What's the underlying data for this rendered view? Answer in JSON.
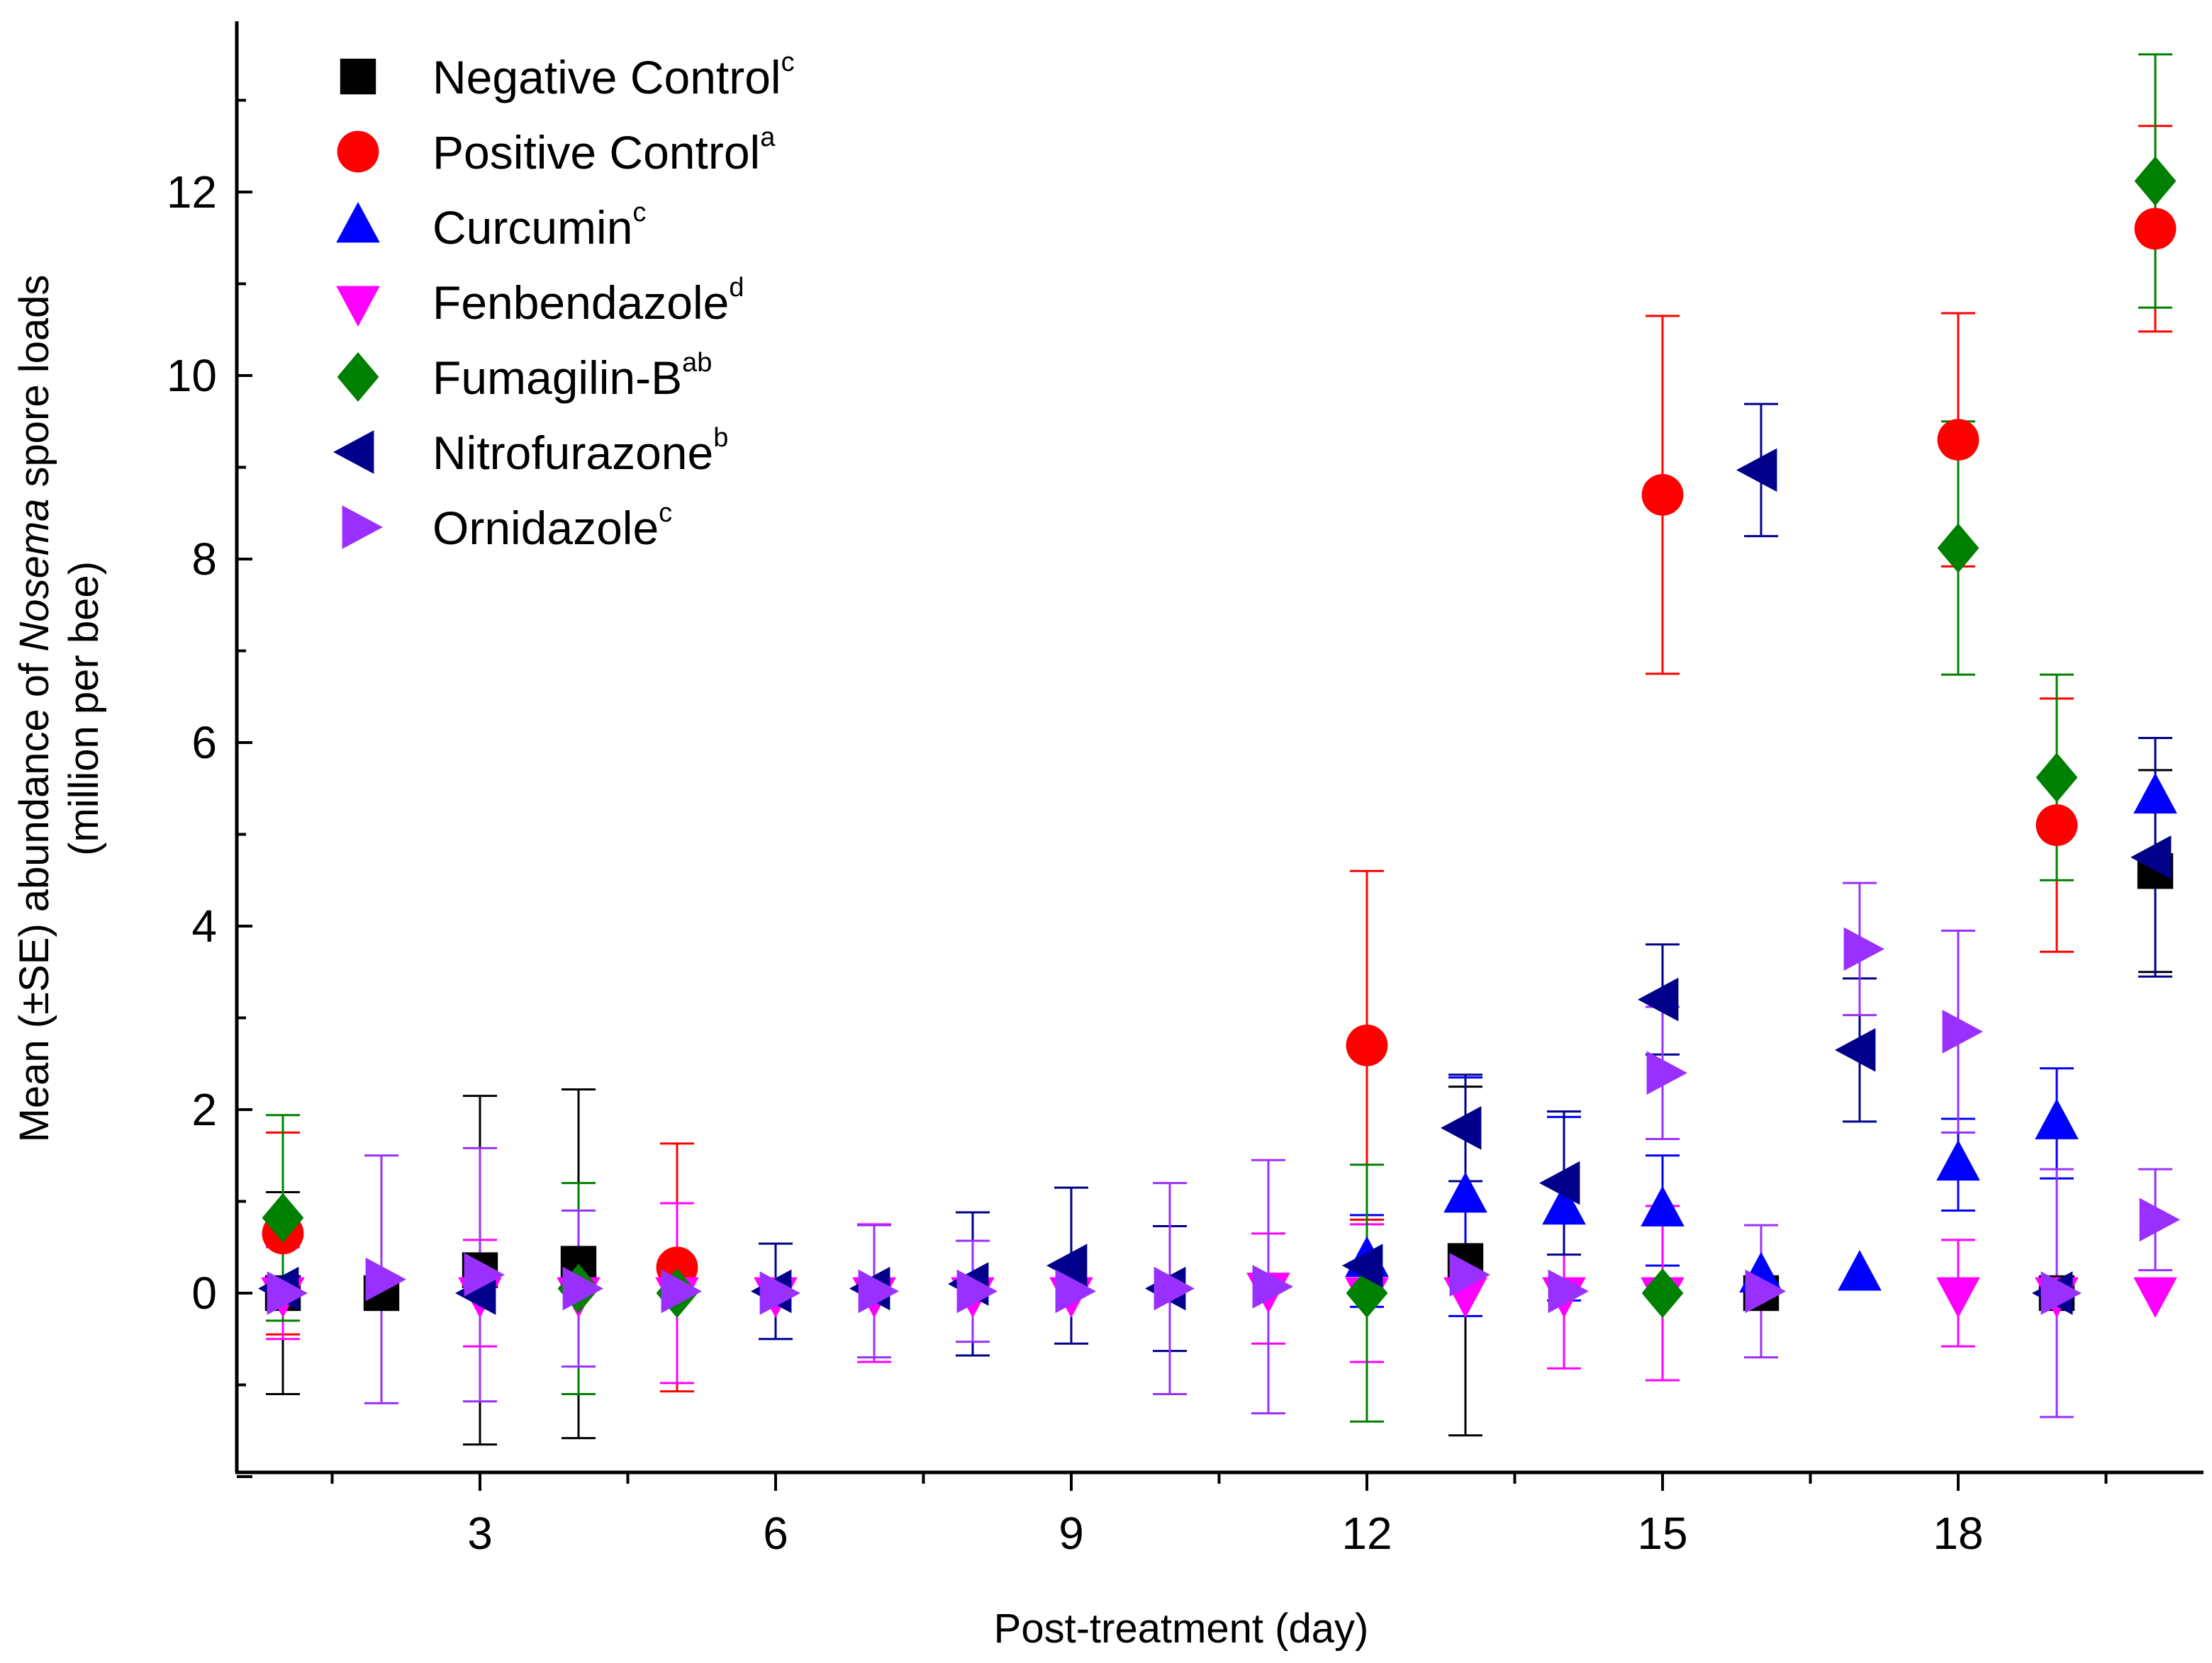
{
  "chart_data": {
    "type": "scatter",
    "title": "",
    "xlabel": "Post-treatment (day)",
    "ylabel_parts": [
      "Mean (±SE) abundance of ",
      "Nosema",
      " spore loads"
    ],
    "ylabel_line2": "(million per bee)",
    "xlim": [
      0.5,
      20.7
    ],
    "ylim": [
      -2,
      13.6
    ],
    "x_ticks": [
      3,
      6,
      9,
      12,
      15,
      18
    ],
    "x_tick_labels": [
      "3",
      "6",
      "9",
      "12",
      "15",
      "18"
    ],
    "y_ticks": [
      0,
      2,
      4,
      6,
      8,
      10,
      12
    ],
    "y_tick_labels": [
      "0",
      "2",
      "4",
      "6",
      "8",
      "10",
      "12"
    ],
    "legend_position": "top-left",
    "series": [
      {
        "name": "Negative Control",
        "sup": "c",
        "marker": "square",
        "color": "#000000",
        "points": [
          {
            "x": 1,
            "y": 0.0,
            "err": 1.1
          },
          {
            "x": 2,
            "y": 0.0,
            "err": 0
          },
          {
            "x": 3,
            "y": 0.25,
            "err": 1.9
          },
          {
            "x": 4,
            "y": 0.32,
            "err": 1.9
          },
          {
            "x": 13,
            "y": 0.35,
            "err": 1.9
          },
          {
            "x": 16,
            "y": 0.0,
            "err": 0
          },
          {
            "x": 19,
            "y": 0.0,
            "err": 0
          },
          {
            "x": 20,
            "y": 4.6,
            "err": 1.1
          }
        ]
      },
      {
        "name": "Positive Control",
        "sup": "a",
        "marker": "circle",
        "color": "#ff0000",
        "points": [
          {
            "x": 1,
            "y": 0.65,
            "err": 1.1
          },
          {
            "x": 5,
            "y": 0.28,
            "err": 1.35
          },
          {
            "x": 12,
            "y": 2.7,
            "err": 1.9
          },
          {
            "x": 15,
            "y": 8.7,
            "err": 1.95
          },
          {
            "x": 18,
            "y": 9.3,
            "err": 1.38
          },
          {
            "x": 19,
            "y": 5.1,
            "err": 1.38
          },
          {
            "x": 20,
            "y": 11.6,
            "err": 1.12
          }
        ]
      },
      {
        "name": "Curcumin",
        "sup": "c",
        "marker": "triangle-up",
        "color": "#0000ff",
        "points": [
          {
            "x": 12,
            "y": 0.35,
            "err": 0.5
          },
          {
            "x": 13,
            "y": 1.05,
            "err": 1.3
          },
          {
            "x": 14,
            "y": 0.92,
            "err": 1.0
          },
          {
            "x": 15,
            "y": 0.9,
            "err": 0.6
          },
          {
            "x": 16,
            "y": 0.18,
            "err": 0
          },
          {
            "x": 17,
            "y": 0.2,
            "err": 0
          },
          {
            "x": 18,
            "y": 1.4,
            "err": 0.5
          },
          {
            "x": 19,
            "y": 1.85,
            "err": 0.6
          },
          {
            "x": 20,
            "y": 5.4,
            "err": 0.65
          }
        ]
      },
      {
        "name": "Fenbendazole",
        "sup": "d",
        "marker": "triangle-down",
        "color": "#ff00ff",
        "points": [
          {
            "x": 1,
            "y": 0.0,
            "err": 0.5
          },
          {
            "x": 3,
            "y": 0.0,
            "err": 0.58
          },
          {
            "x": 4,
            "y": 0.0,
            "err": 0
          },
          {
            "x": 5,
            "y": 0.0,
            "err": 0.98
          },
          {
            "x": 6,
            "y": 0.0,
            "err": 0
          },
          {
            "x": 7,
            "y": 0.0,
            "err": 0.75
          },
          {
            "x": 8,
            "y": 0.0,
            "err": 0
          },
          {
            "x": 9,
            "y": 0.0,
            "err": 0
          },
          {
            "x": 11,
            "y": 0.05,
            "err": 0.6
          },
          {
            "x": 12,
            "y": 0.0,
            "err": 0.75
          },
          {
            "x": 13,
            "y": 0.0,
            "err": 0
          },
          {
            "x": 14,
            "y": 0.0,
            "err": 0.82
          },
          {
            "x": 15,
            "y": 0.0,
            "err": 0.95
          },
          {
            "x": 18,
            "y": 0.0,
            "err": 0.58
          },
          {
            "x": 19,
            "y": 0.0,
            "err": 0
          },
          {
            "x": 20,
            "y": 0.0,
            "err": 0
          }
        ]
      },
      {
        "name": "Fumagilin-B",
        "sup": "ab",
        "marker": "diamond",
        "color": "#008000",
        "points": [
          {
            "x": 1,
            "y": 0.82,
            "err": 1.12
          },
          {
            "x": 4,
            "y": 0.05,
            "err": 1.15
          },
          {
            "x": 5,
            "y": 0.0,
            "err": 0
          },
          {
            "x": 12,
            "y": 0.0,
            "err": 1.4
          },
          {
            "x": 15,
            "y": 0.0,
            "err": 0
          },
          {
            "x": 18,
            "y": 8.12,
            "err": 1.38
          },
          {
            "x": 19,
            "y": 5.62,
            "err": 1.12
          },
          {
            "x": 20,
            "y": 12.12,
            "err": 1.38
          }
        ]
      },
      {
        "name": "Nitrofurazone",
        "sup": "b",
        "marker": "triangle-left",
        "color": "#00008b",
        "points": [
          {
            "x": 1,
            "y": 0.05,
            "err": 0
          },
          {
            "x": 3,
            "y": 0.0,
            "err": 0
          },
          {
            "x": 6,
            "y": 0.02,
            "err": 0.52
          },
          {
            "x": 7,
            "y": 0.05,
            "err": 0
          },
          {
            "x": 8,
            "y": 0.1,
            "err": 0.78
          },
          {
            "x": 9,
            "y": 0.3,
            "err": 0.85
          },
          {
            "x": 10,
            "y": 0.05,
            "err": 0.68
          },
          {
            "x": 12,
            "y": 0.3,
            "err": 0
          },
          {
            "x": 13,
            "y": 1.8,
            "err": 0.58
          },
          {
            "x": 14,
            "y": 1.2,
            "err": 0.78
          },
          {
            "x": 15,
            "y": 3.2,
            "err": 0.6
          },
          {
            "x": 16,
            "y": 8.97,
            "err": 0.72
          },
          {
            "x": 17,
            "y": 2.65,
            "err": 0.78
          },
          {
            "x": 19,
            "y": 0.0,
            "err": 0
          },
          {
            "x": 20,
            "y": 4.75,
            "err": 1.3
          }
        ]
      },
      {
        "name": "Ornidazole",
        "sup": "c",
        "marker": "triangle-right",
        "color": "#9a30ff",
        "points": [
          {
            "x": 1,
            "y": 0.0,
            "err": 0
          },
          {
            "x": 2,
            "y": 0.15,
            "err": 1.35
          },
          {
            "x": 3,
            "y": 0.2,
            "err": 1.38
          },
          {
            "x": 4,
            "y": 0.05,
            "err": 0.85
          },
          {
            "x": 5,
            "y": 0.02,
            "err": 0
          },
          {
            "x": 6,
            "y": 0.0,
            "err": 0
          },
          {
            "x": 7,
            "y": 0.02,
            "err": 0.72
          },
          {
            "x": 8,
            "y": 0.02,
            "err": 0.55
          },
          {
            "x": 9,
            "y": 0.02,
            "err": 0
          },
          {
            "x": 10,
            "y": 0.05,
            "err": 1.15
          },
          {
            "x": 11,
            "y": 0.07,
            "err": 1.38
          },
          {
            "x": 13,
            "y": 0.2,
            "err": 0
          },
          {
            "x": 14,
            "y": 0.02,
            "err": 0
          },
          {
            "x": 15,
            "y": 2.4,
            "err": 0.72
          },
          {
            "x": 16,
            "y": 0.02,
            "err": 0.72
          },
          {
            "x": 17,
            "y": 3.75,
            "err": 0.72
          },
          {
            "x": 18,
            "y": 2.85,
            "err": 1.1
          },
          {
            "x": 19,
            "y": 0.0,
            "err": 1.35
          },
          {
            "x": 20,
            "y": 0.8,
            "err": 0.55
          }
        ]
      }
    ]
  }
}
